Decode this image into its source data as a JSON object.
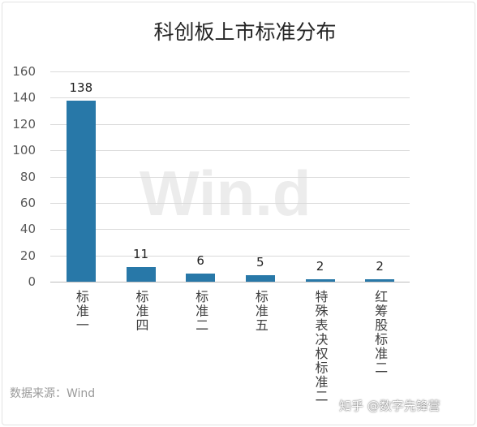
{
  "chart_data": {
    "type": "bar",
    "title": "科创板上市标准分布",
    "categories": [
      "标准一",
      "标准四",
      "标准二",
      "标准五",
      "特殊表决权标准二",
      "红筹股标准二"
    ],
    "values": [
      138,
      11,
      6,
      5,
      2,
      2
    ],
    "ylim": [
      0,
      160
    ],
    "yticks": [
      0,
      20,
      40,
      60,
      80,
      100,
      120,
      140,
      160
    ],
    "grid": true,
    "legend": "none",
    "data_labels": true,
    "bar_color": "#2878a8"
  },
  "source": "数据来源：Wind",
  "watermark": {
    "center": "Win.d",
    "corner": "知乎 @数字先锋营"
  }
}
